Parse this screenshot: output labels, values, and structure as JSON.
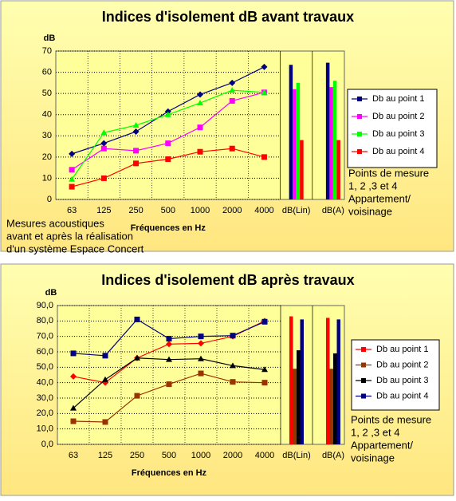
{
  "chart_data": [
    {
      "type": "line",
      "title": "Indices d'isolement dB avant travaux",
      "y_label": "dB",
      "x_label": "Fréquences  en Hz",
      "categories": [
        "63",
        "125",
        "250",
        "500",
        "1000",
        "2000",
        "4000"
      ],
      "bar_categories": [
        "dB(Lin)",
        "dB(A)"
      ],
      "ylim": [
        0,
        70
      ],
      "yticks": [
        0,
        10,
        20,
        30,
        40,
        50,
        60,
        70
      ],
      "grid": true,
      "series": [
        {
          "name": "Db au point 1",
          "color": "#000080",
          "marker": "diamond",
          "values": [
            21.5,
            26.5,
            32,
            41.5,
            49.5,
            55,
            62.5
          ],
          "bar_values": [
            63.5,
            64.5
          ]
        },
        {
          "name": "Db au point 2",
          "color": "#ff00ff",
          "marker": "square",
          "values": [
            14,
            24,
            23,
            26.5,
            34,
            46.5,
            50.5
          ],
          "bar_values": [
            52,
            53
          ]
        },
        {
          "name": "Db au point 3",
          "color": "#00ff00",
          "marker": "triangle",
          "values": [
            9.5,
            31.5,
            35,
            40,
            45.5,
            51.5,
            50.5
          ],
          "bar_values": [
            55,
            56
          ]
        },
        {
          "name": "Db au point 4",
          "color": "#ff0000",
          "marker": "square",
          "values": [
            6,
            10,
            17,
            19,
            22.5,
            24,
            20
          ],
          "bar_values": [
            28,
            28
          ]
        }
      ],
      "annotation": [
        "Points de mesure",
        "1, 2 ,3 et 4",
        "Appartement/",
        "voisinage"
      ],
      "note": [
        "Mesures acoustiques",
        "avant et après la réalisation",
        "d'un système Espace Concert"
      ]
    },
    {
      "type": "line",
      "title": "Indices d'isolement dB après travaux",
      "y_label": "dB",
      "x_label": "Fréquences  en Hz",
      "categories": [
        "63",
        "125",
        "250",
        "500",
        "1000",
        "2000",
        "4000"
      ],
      "bar_categories": [
        "dB(Lin)",
        "dB(A)"
      ],
      "ylim": [
        0,
        90
      ],
      "yticks": [
        {
          "value": 0,
          "label": "0,0"
        },
        {
          "value": 10,
          "label": "10,0"
        },
        {
          "value": 20,
          "label": "20,0"
        },
        {
          "value": 30,
          "label": "30,0"
        },
        {
          "value": 40,
          "label": "40,0"
        },
        {
          "value": 50,
          "label": "50,0"
        },
        {
          "value": 60,
          "label": "60,0"
        },
        {
          "value": 70,
          "label": "70,0"
        },
        {
          "value": 80,
          "label": "80,0"
        },
        {
          "value": 90,
          "label": "90,0"
        }
      ],
      "grid": true,
      "series": [
        {
          "name": "Db au point 1",
          "color": "#ff0000",
          "marker": "diamond",
          "values": [
            44,
            40,
            56,
            65,
            65.5,
            70,
            80
          ],
          "bar_values": [
            83,
            82
          ]
        },
        {
          "name": "Db au point 2",
          "color": "#993300",
          "marker": "square",
          "values": [
            15,
            14.5,
            31.5,
            39,
            46,
            40.5,
            40
          ],
          "bar_values": [
            49,
            49
          ]
        },
        {
          "name": "Db au point 3",
          "color": "#000000",
          "marker": "triangle",
          "values": [
            23.5,
            42,
            56,
            55,
            55.5,
            51,
            48.5
          ],
          "bar_values": [
            61,
            59
          ]
        },
        {
          "name": "Db au point 4",
          "color": "#000080",
          "marker": "square",
          "values": [
            59,
            57.5,
            81,
            68.5,
            70,
            70.5,
            79.5
          ],
          "bar_values": [
            81,
            81
          ]
        }
      ],
      "annotation": [
        "Points de mesure",
        "1, 2 ,3 et 4",
        "Appartement/",
        "voisinage"
      ]
    }
  ]
}
